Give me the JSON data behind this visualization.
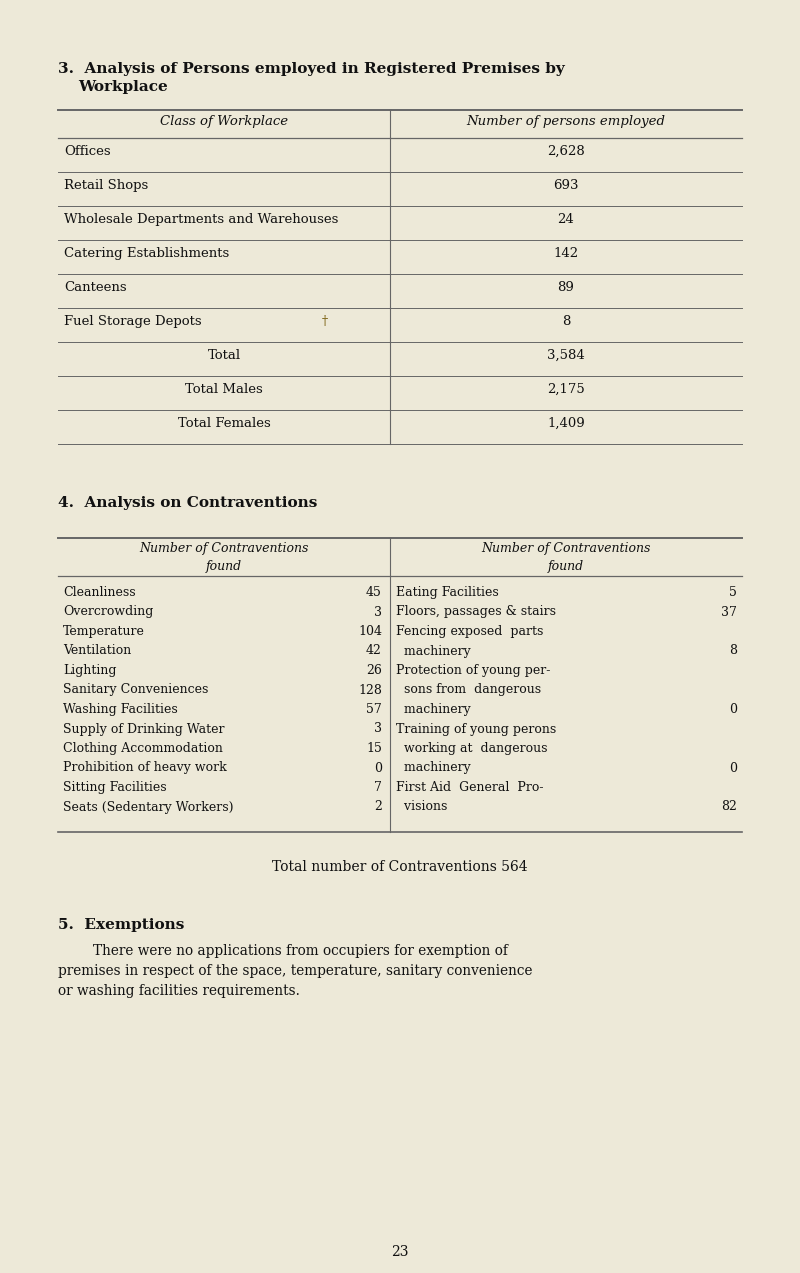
{
  "bg_color": "#ede9d8",
  "text_color": "#111111",
  "page_number": "23",
  "section3_title_line1": "3.  Analysis of Persons employed in Registered Premises by",
  "section3_title_line2": "Workplace",
  "table1_col1_header": "Class of Workplace",
  "table1_col2_header": "Number of persons employed",
  "table1_normal_rows": [
    [
      "Offices",
      "2,628"
    ],
    [
      "Retail Shops",
      "693"
    ],
    [
      "Wholesale Departments and Warehouses",
      "24"
    ],
    [
      "Catering Establishments",
      "142"
    ],
    [
      "Canteens",
      "89"
    ],
    [
      "Fuel Storage Depots",
      "8"
    ]
  ],
  "table1_summary_rows": [
    [
      "Total",
      "3,584"
    ],
    [
      "Total Males",
      "2,175"
    ],
    [
      "Total Females",
      "1,409"
    ]
  ],
  "section4_title": "4.  Analysis on Contraventions",
  "table2_header": "Number of Contraventions\nfound",
  "table2_left_rows": [
    [
      "Cleanliness",
      "45"
    ],
    [
      "Overcrowding",
      "3"
    ],
    [
      "Temperature",
      "104"
    ],
    [
      "Ventilation",
      "42"
    ],
    [
      "Lighting",
      "26"
    ],
    [
      "Sanitary Conveniences",
      "128"
    ],
    [
      "Washing Facilities",
      "57"
    ],
    [
      "Supply of Drinking Water",
      "3"
    ],
    [
      "Clothing Accommodation",
      "15"
    ],
    [
      "Prohibition of heavy work",
      "0"
    ],
    [
      "Sitting Facilities",
      "7"
    ],
    [
      "Seats (Sedentary Workers)",
      "2"
    ]
  ],
  "table2_right_items": [
    {
      "lines": [
        "Eating Facilities"
      ],
      "value": "5"
    },
    {
      "lines": [
        "Floors, passages & stairs"
      ],
      "value": "37"
    },
    {
      "lines": [
        "Fencing exposed  parts",
        "  machinery"
      ],
      "value": "8"
    },
    {
      "lines": [
        "Protection of young per-",
        "  sons from  dangerous",
        "  machinery"
      ],
      "value": "0"
    },
    {
      "lines": [
        "Training of young perons",
        "  working at  dangerous",
        "  machinery"
      ],
      "value": "0"
    },
    {
      "lines": [
        "First Aid  General  Pro-",
        "  visions"
      ],
      "value": "82"
    }
  ],
  "total_contraventions_text": "Total number of Contraventions 564",
  "section5_title": "5.  Exemptions",
  "section5_indent": "        There were no applications from occupiers for exemption of",
  "section5_line2": "premises in respect of the space, temperature, sanitary convenience",
  "section5_line3": "or washing facilities requirements."
}
